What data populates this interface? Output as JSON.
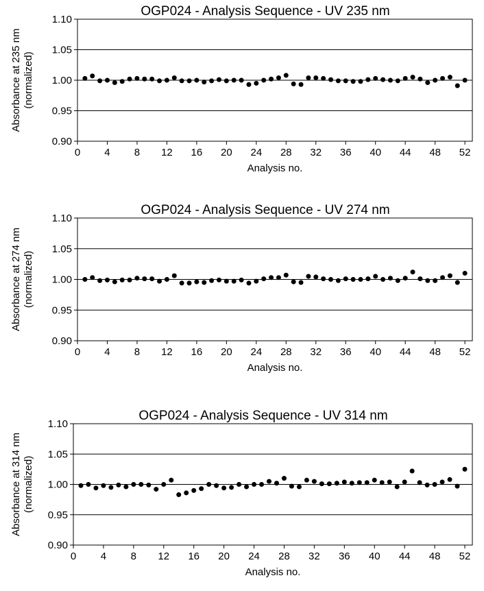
{
  "chart_data": [
    {
      "type": "scatter",
      "title": "OGP024 -  Analysis Sequence - UV 235 nm",
      "xlabel": "Analysis no.",
      "ylabel": "Absorbance at 235 nm",
      "ylabel2": "(normalized)",
      "xlim": [
        0,
        53
      ],
      "ylim": [
        0.9,
        1.1
      ],
      "x_ticks": [
        0,
        4,
        8,
        12,
        16,
        20,
        24,
        28,
        32,
        36,
        40,
        44,
        48,
        52
      ],
      "y_ticks": [
        "0.90",
        "0.95",
        "1.00",
        "1.05",
        "1.10"
      ],
      "grid": "horizontal",
      "marker_color": "#000000",
      "x": [
        1,
        2,
        3,
        4,
        5,
        6,
        7,
        8,
        9,
        10,
        11,
        12,
        13,
        14,
        15,
        16,
        17,
        18,
        19,
        20,
        21,
        22,
        23,
        24,
        25,
        26,
        27,
        28,
        29,
        30,
        31,
        32,
        33,
        34,
        35,
        36,
        37,
        38,
        39,
        40,
        41,
        42,
        43,
        44,
        45,
        46,
        47,
        48,
        49,
        50,
        51,
        52
      ],
      "y": [
        1.003,
        1.007,
        0.999,
        1.0,
        0.996,
        0.998,
        1.002,
        1.003,
        1.002,
        1.002,
        0.999,
        1.0,
        1.004,
        0.999,
        0.999,
        1.0,
        0.997,
        0.999,
        1.001,
        0.999,
        1.0,
        1.0,
        0.993,
        0.995,
        1.0,
        1.002,
        1.004,
        1.008,
        0.994,
        0.993,
        1.004,
        1.004,
        1.003,
        1.001,
        0.999,
        0.999,
        0.998,
        0.998,
        1.001,
        1.003,
        1.001,
        1.0,
        0.999,
        1.003,
        1.005,
        1.002,
        0.996,
        1.0,
        1.003,
        1.005,
        0.991,
        1.0
      ]
    },
    {
      "type": "scatter",
      "title": "OGP024 - Analysis Sequence - UV 274 nm",
      "xlabel": "Analysis no.",
      "ylabel": "Absorbance at 274 nm",
      "ylabel2": "(normalized)",
      "xlim": [
        0,
        53
      ],
      "ylim": [
        0.9,
        1.1
      ],
      "x_ticks": [
        0,
        4,
        8,
        12,
        16,
        20,
        24,
        28,
        32,
        36,
        40,
        44,
        48,
        52
      ],
      "y_ticks": [
        "0.90",
        "0.95",
        "1.00",
        "1.05",
        "1.10"
      ],
      "grid": "horizontal",
      "marker_color": "#000000",
      "x": [
        1,
        2,
        3,
        4,
        5,
        6,
        7,
        8,
        9,
        10,
        11,
        12,
        13,
        14,
        15,
        16,
        17,
        18,
        19,
        20,
        21,
        22,
        23,
        24,
        25,
        26,
        27,
        28,
        29,
        30,
        31,
        32,
        33,
        34,
        35,
        36,
        37,
        38,
        39,
        40,
        41,
        42,
        43,
        44,
        45,
        46,
        47,
        48,
        49,
        50,
        51,
        52
      ],
      "y": [
        1.0,
        1.003,
        0.998,
        0.999,
        0.996,
        0.999,
        0.999,
        1.002,
        1.001,
        1.001,
        0.997,
        1.0,
        1.006,
        0.994,
        0.994,
        0.996,
        0.995,
        0.998,
        0.999,
        0.997,
        0.997,
        0.999,
        0.994,
        0.997,
        1.001,
        1.003,
        1.003,
        1.007,
        0.996,
        0.995,
        1.005,
        1.004,
        1.001,
        1.0,
        0.998,
        1.001,
        1.0,
        1.0,
        1.001,
        1.005,
        1.0,
        1.002,
        0.998,
        1.002,
        1.012,
        1.001,
        0.998,
        0.998,
        1.003,
        1.006,
        0.995,
        1.01
      ]
    },
    {
      "type": "scatter",
      "title": "OGP024 - Analysis Sequence - UV 314 nm",
      "xlabel": "Analysis no.",
      "ylabel": "Absorbance at 314 nm",
      "ylabel2": "(normalized)",
      "xlim": [
        0,
        53
      ],
      "ylim": [
        0.9,
        1.1
      ],
      "x_ticks": [
        0,
        4,
        8,
        12,
        16,
        20,
        24,
        28,
        32,
        36,
        40,
        44,
        48,
        52
      ],
      "y_ticks": [
        "0.90",
        "0.95",
        "1.00",
        "1.05",
        "1.10"
      ],
      "grid": "horizontal",
      "marker_color": "#000000",
      "x": [
        1,
        2,
        3,
        4,
        5,
        6,
        7,
        8,
        9,
        10,
        11,
        12,
        13,
        14,
        15,
        16,
        17,
        18,
        19,
        20,
        21,
        22,
        23,
        24,
        25,
        26,
        27,
        28,
        29,
        30,
        31,
        32,
        33,
        34,
        35,
        36,
        37,
        38,
        39,
        40,
        41,
        42,
        43,
        44,
        45,
        46,
        47,
        48,
        49,
        50,
        51,
        52
      ],
      "y": [
        0.998,
        1.0,
        0.994,
        0.998,
        0.995,
        0.999,
        0.996,
        1.0,
        1.0,
        0.999,
        0.992,
        1.0,
        1.007,
        0.983,
        0.986,
        0.99,
        0.993,
        1.0,
        0.998,
        0.994,
        0.995,
        1.0,
        0.996,
        1.0,
        1.0,
        1.005,
        1.002,
        1.01,
        0.997,
        0.996,
        1.007,
        1.005,
        1.001,
        1.001,
        1.002,
        1.004,
        1.002,
        1.003,
        1.003,
        1.007,
        1.003,
        1.004,
        0.996,
        1.004,
        1.022,
        1.003,
        0.999,
        1.0,
        1.004,
        1.008,
        0.997,
        1.025
      ]
    }
  ]
}
